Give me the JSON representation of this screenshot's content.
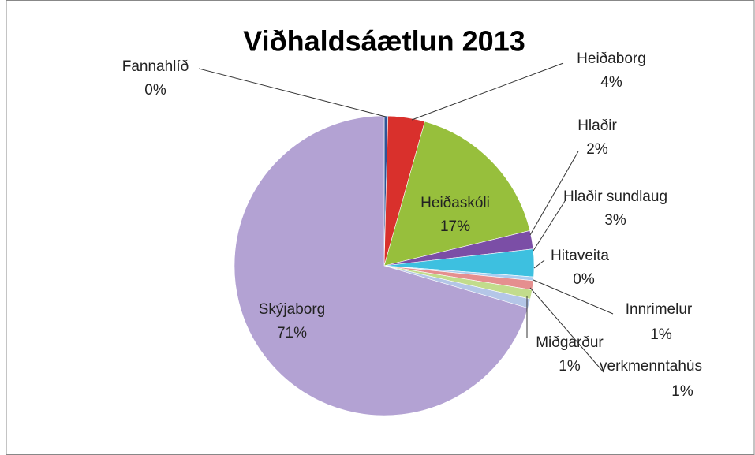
{
  "chart_data": {
    "type": "pie",
    "title": "Viðhaldsáætlun 2013",
    "categories": [
      "Fannahlíð",
      "Heiðaborg",
      "Heiðaskóli",
      "Hlaðir",
      "Hlaðir sundlaug",
      "Hitaveita",
      "Innrimelur",
      "Miðgarður",
      "verkmenntahús",
      "Skýjaborg"
    ],
    "values": [
      0.4,
      4,
      17,
      2,
      3,
      0.4,
      1,
      1,
      1,
      71
    ],
    "value_labels": [
      "0%",
      "4%",
      "17%",
      "2%",
      "3%",
      "0%",
      "1%",
      "1%",
      "1%",
      "71%"
    ],
    "colors": [
      "#2f5597",
      "#d9302c",
      "#97bf3c",
      "#7b4ea6",
      "#3dc0e0",
      "#a9cdf0",
      "#e58f8f",
      "#c2dc8c",
      "#b4c6e7",
      "#b3a2d3"
    ]
  }
}
